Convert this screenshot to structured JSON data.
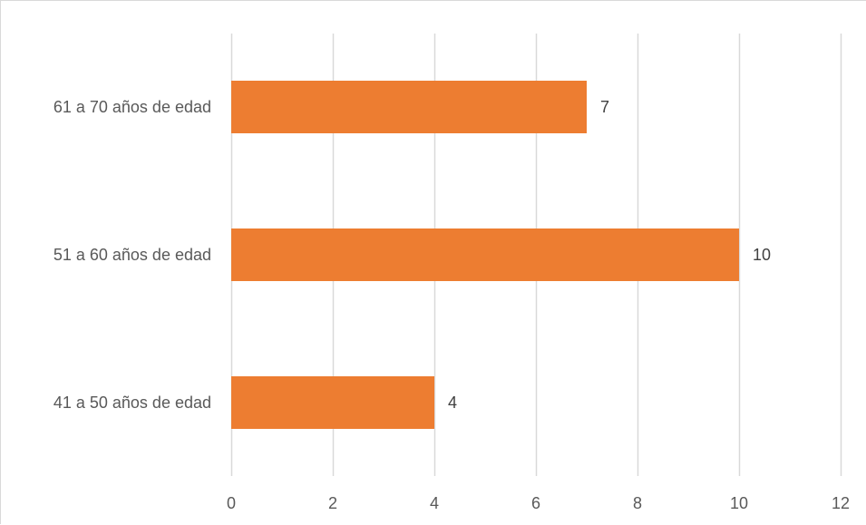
{
  "chart_data": {
    "type": "bar",
    "orientation": "horizontal",
    "categories": [
      "61 a 70 años de edad",
      "51 a 60 años de edad",
      "41 a 50 años de edad"
    ],
    "values": [
      7,
      10,
      4
    ],
    "data_labels": [
      "7",
      "10",
      "4"
    ],
    "xlim": [
      0,
      12
    ],
    "x_ticks": [
      0,
      2,
      4,
      6,
      8,
      10,
      12
    ],
    "x_tick_labels": [
      "0",
      "2",
      "4",
      "6",
      "8",
      "10",
      "12"
    ],
    "title": "",
    "xlabel": "",
    "ylabel": "",
    "grid": "vertical",
    "legend": "none",
    "bar_color": "#ED7D31",
    "grid_color": "#D9D9D9"
  }
}
